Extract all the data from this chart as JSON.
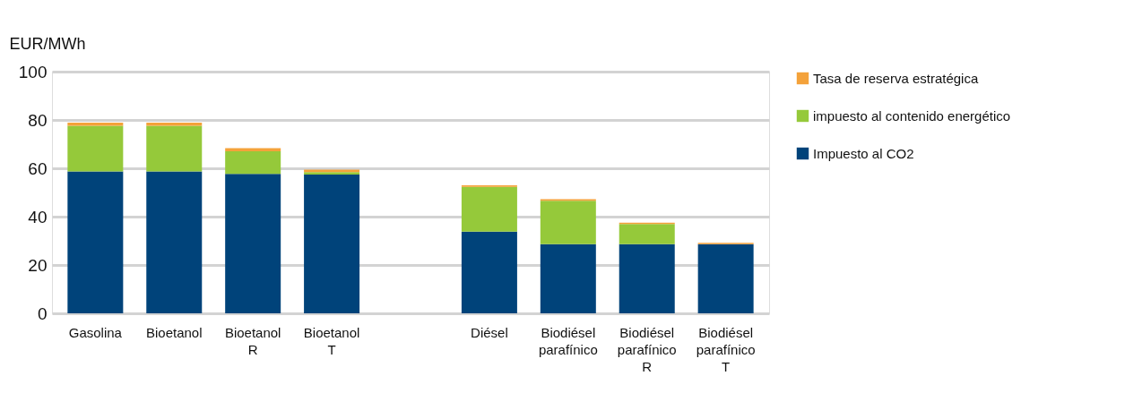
{
  "chart_data": {
    "type": "bar",
    "stacked": true,
    "ylabel": "EUR/MWh",
    "categories": [
      "Gasolina",
      "Bioetanol",
      "Bioetanol\n\nR",
      "Bioetanol\n\nT",
      null,
      "Diésel",
      "Biodiésel\nparafínico",
      "Biodiésel\nparafínico\n\nR",
      "Biodiésel\nparafínico\n\nT"
    ],
    "series": [
      {
        "name": "Impuesto al CO2",
        "color": "#00437a",
        "values": [
          58.7,
          58.7,
          57.7,
          57.4,
          null,
          33.8,
          28.6,
          28.6,
          28.6
        ]
      },
      {
        "name": "impuesto al contenido energético",
        "color": "#95c93a",
        "values": [
          18.9,
          18.9,
          9.3,
          1.0,
          null,
          18.5,
          18.0,
          8.3,
          0
        ]
      },
      {
        "name": "Tasa de reserva estratégica",
        "color": "#f4a23a",
        "values": [
          1.3,
          1.3,
          1.3,
          1.0,
          null,
          0.7,
          0.6,
          0.6,
          0.6
        ]
      }
    ],
    "ylim": [
      0,
      100
    ],
    "yticks": [
      0,
      20,
      40,
      60,
      80,
      100
    ],
    "grid": "y",
    "legend": "right"
  }
}
